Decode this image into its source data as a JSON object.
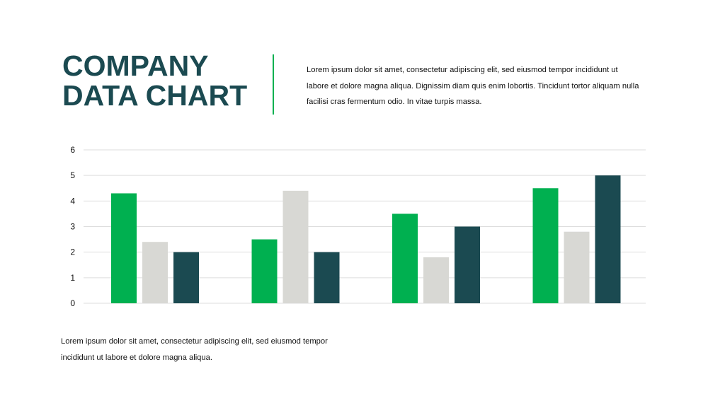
{
  "header": {
    "title_line1": "COMPANY",
    "title_line2": "DATA CHART",
    "intro": "Lorem ipsum dolor sit amet, consectetur adipiscing elit, sed eiusmod tempor incididunt ut labore et dolore magna aliqua. Dignissim diam quis enim lobortis. Tincidunt tortor aliquam nulla facilisi cras fermentum odio. In vitae turpis massa."
  },
  "footer": {
    "text": "Lorem ipsum dolor sit amet, consectetur adipiscing elit, sed eiusmod tempor incididunt ut labore et dolore magna aliqua."
  },
  "colors": {
    "title": "#1b4a51",
    "accent": "#00b050",
    "series_green": "#00b050",
    "series_gray": "#d8d8d4",
    "series_teal": "#1b4a51",
    "grid": "#dddddd"
  },
  "chart_data": {
    "type": "bar",
    "categories": [
      "",
      "",
      "",
      ""
    ],
    "series": [
      {
        "values": [
          4.3,
          2.5,
          3.5,
          4.5
        ],
        "color": "#00b050"
      },
      {
        "values": [
          2.4,
          4.4,
          1.8,
          2.8
        ],
        "color": "#d8d8d4"
      },
      {
        "values": [
          2.0,
          2.0,
          3.0,
          5.0
        ],
        "color": "#1b4a51"
      }
    ],
    "yticks": [
      "0",
      "1",
      "2",
      "3",
      "4",
      "5",
      "6"
    ],
    "ylim": [
      0,
      6
    ],
    "grid": true,
    "legend": "none"
  }
}
